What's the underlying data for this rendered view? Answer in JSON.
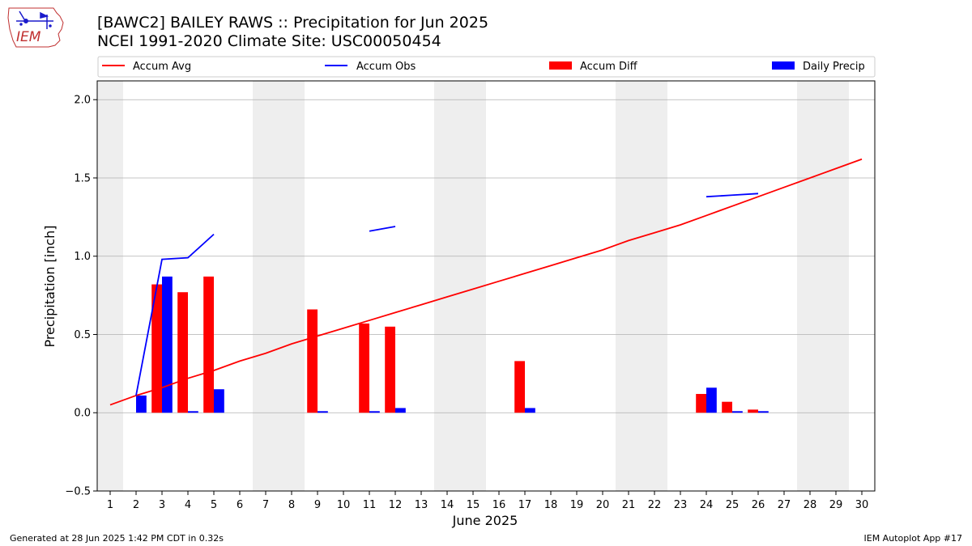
{
  "logo": {
    "text": "IEM",
    "icon": "iem-iowa-logo"
  },
  "title_line1": "[BAWC2] BAILEY RAWS :: Precipitation for Jun 2025",
  "title_line2": "NCEI 1991-2020 Climate Site: USC00050454",
  "footer": {
    "left": "Generated at 28 Jun 2025 1:42 PM CDT in 0.32s",
    "right": "IEM Autoplot App #17"
  },
  "colors": {
    "avg": "#ff0000",
    "obs": "#0000ff",
    "diff": "#ff0000",
    "daily": "#0000ff",
    "weekend": "#eeeeee",
    "grid": "#b0b0b0"
  },
  "chart_data": {
    "type": "bar",
    "xlabel": "June 2025",
    "ylabel": "Precipitation [inch]",
    "xlim": [
      0.5,
      30.5
    ],
    "ylim": [
      -0.5,
      2.12
    ],
    "yticks": [
      -0.5,
      0.0,
      0.5,
      1.0,
      1.5,
      2.0
    ],
    "ytick_labels": [
      "−0.5",
      "0.0",
      "0.5",
      "1.0",
      "1.5",
      "2.0"
    ],
    "xticks": [
      1,
      2,
      3,
      4,
      5,
      6,
      7,
      8,
      9,
      10,
      11,
      12,
      13,
      14,
      15,
      16,
      17,
      18,
      19,
      20,
      21,
      22,
      23,
      24,
      25,
      26,
      27,
      28,
      29,
      30
    ],
    "xtick_labels": [
      "1",
      "2",
      "3",
      "4",
      "5",
      "6",
      "7",
      "8",
      "9",
      "10",
      "11",
      "12",
      "13",
      "14",
      "15",
      "16",
      "17",
      "18",
      "19",
      "20",
      "21",
      "22",
      "23",
      "24",
      "25",
      "26",
      "27",
      "28",
      "29",
      "30"
    ],
    "grid": "horizontal",
    "legend_placement": "top",
    "legend": [
      "Accum Avg",
      "Accum Obs",
      "Accum Diff",
      "Daily Precip"
    ],
    "weekend_days": [
      1,
      7,
      8,
      14,
      15,
      21,
      22,
      28,
      29
    ],
    "days": [
      1,
      2,
      3,
      4,
      5,
      6,
      7,
      8,
      9,
      10,
      11,
      12,
      13,
      14,
      15,
      16,
      17,
      18,
      19,
      20,
      21,
      22,
      23,
      24,
      25,
      26,
      27,
      28,
      29,
      30
    ],
    "accum_avg": [
      0.05,
      0.11,
      0.16,
      0.22,
      0.27,
      0.33,
      0.38,
      0.44,
      0.49,
      0.54,
      0.59,
      0.64,
      0.69,
      0.74,
      0.79,
      0.84,
      0.89,
      0.94,
      0.99,
      1.04,
      1.1,
      1.15,
      1.2,
      1.26,
      1.32,
      1.38,
      1.44,
      1.5,
      1.56,
      1.62
    ],
    "accum_obs": [
      null,
      0.11,
      0.98,
      0.99,
      1.14,
      null,
      null,
      null,
      null,
      null,
      1.16,
      1.19,
      null,
      null,
      null,
      null,
      null,
      null,
      null,
      null,
      null,
      null,
      null,
      1.38,
      1.39,
      1.4,
      null,
      null,
      null,
      null
    ],
    "accum_diff": [
      0,
      0,
      0.82,
      0.77,
      0.87,
      0,
      0,
      0,
      0.66,
      0,
      0.57,
      0.55,
      0,
      0,
      0,
      0,
      0.33,
      0,
      0,
      0,
      0,
      0,
      0,
      0.12,
      0.07,
      0.02,
      0,
      0,
      0,
      0
    ],
    "daily_precip": [
      0,
      0.11,
      0.87,
      0.01,
      0.15,
      0,
      0,
      0,
      0.01,
      0,
      0.01,
      0.03,
      0,
      0,
      0,
      0,
      0.03,
      0,
      0,
      0,
      0,
      0,
      0,
      0.16,
      0.01,
      0.01,
      0,
      0,
      0,
      0
    ]
  }
}
